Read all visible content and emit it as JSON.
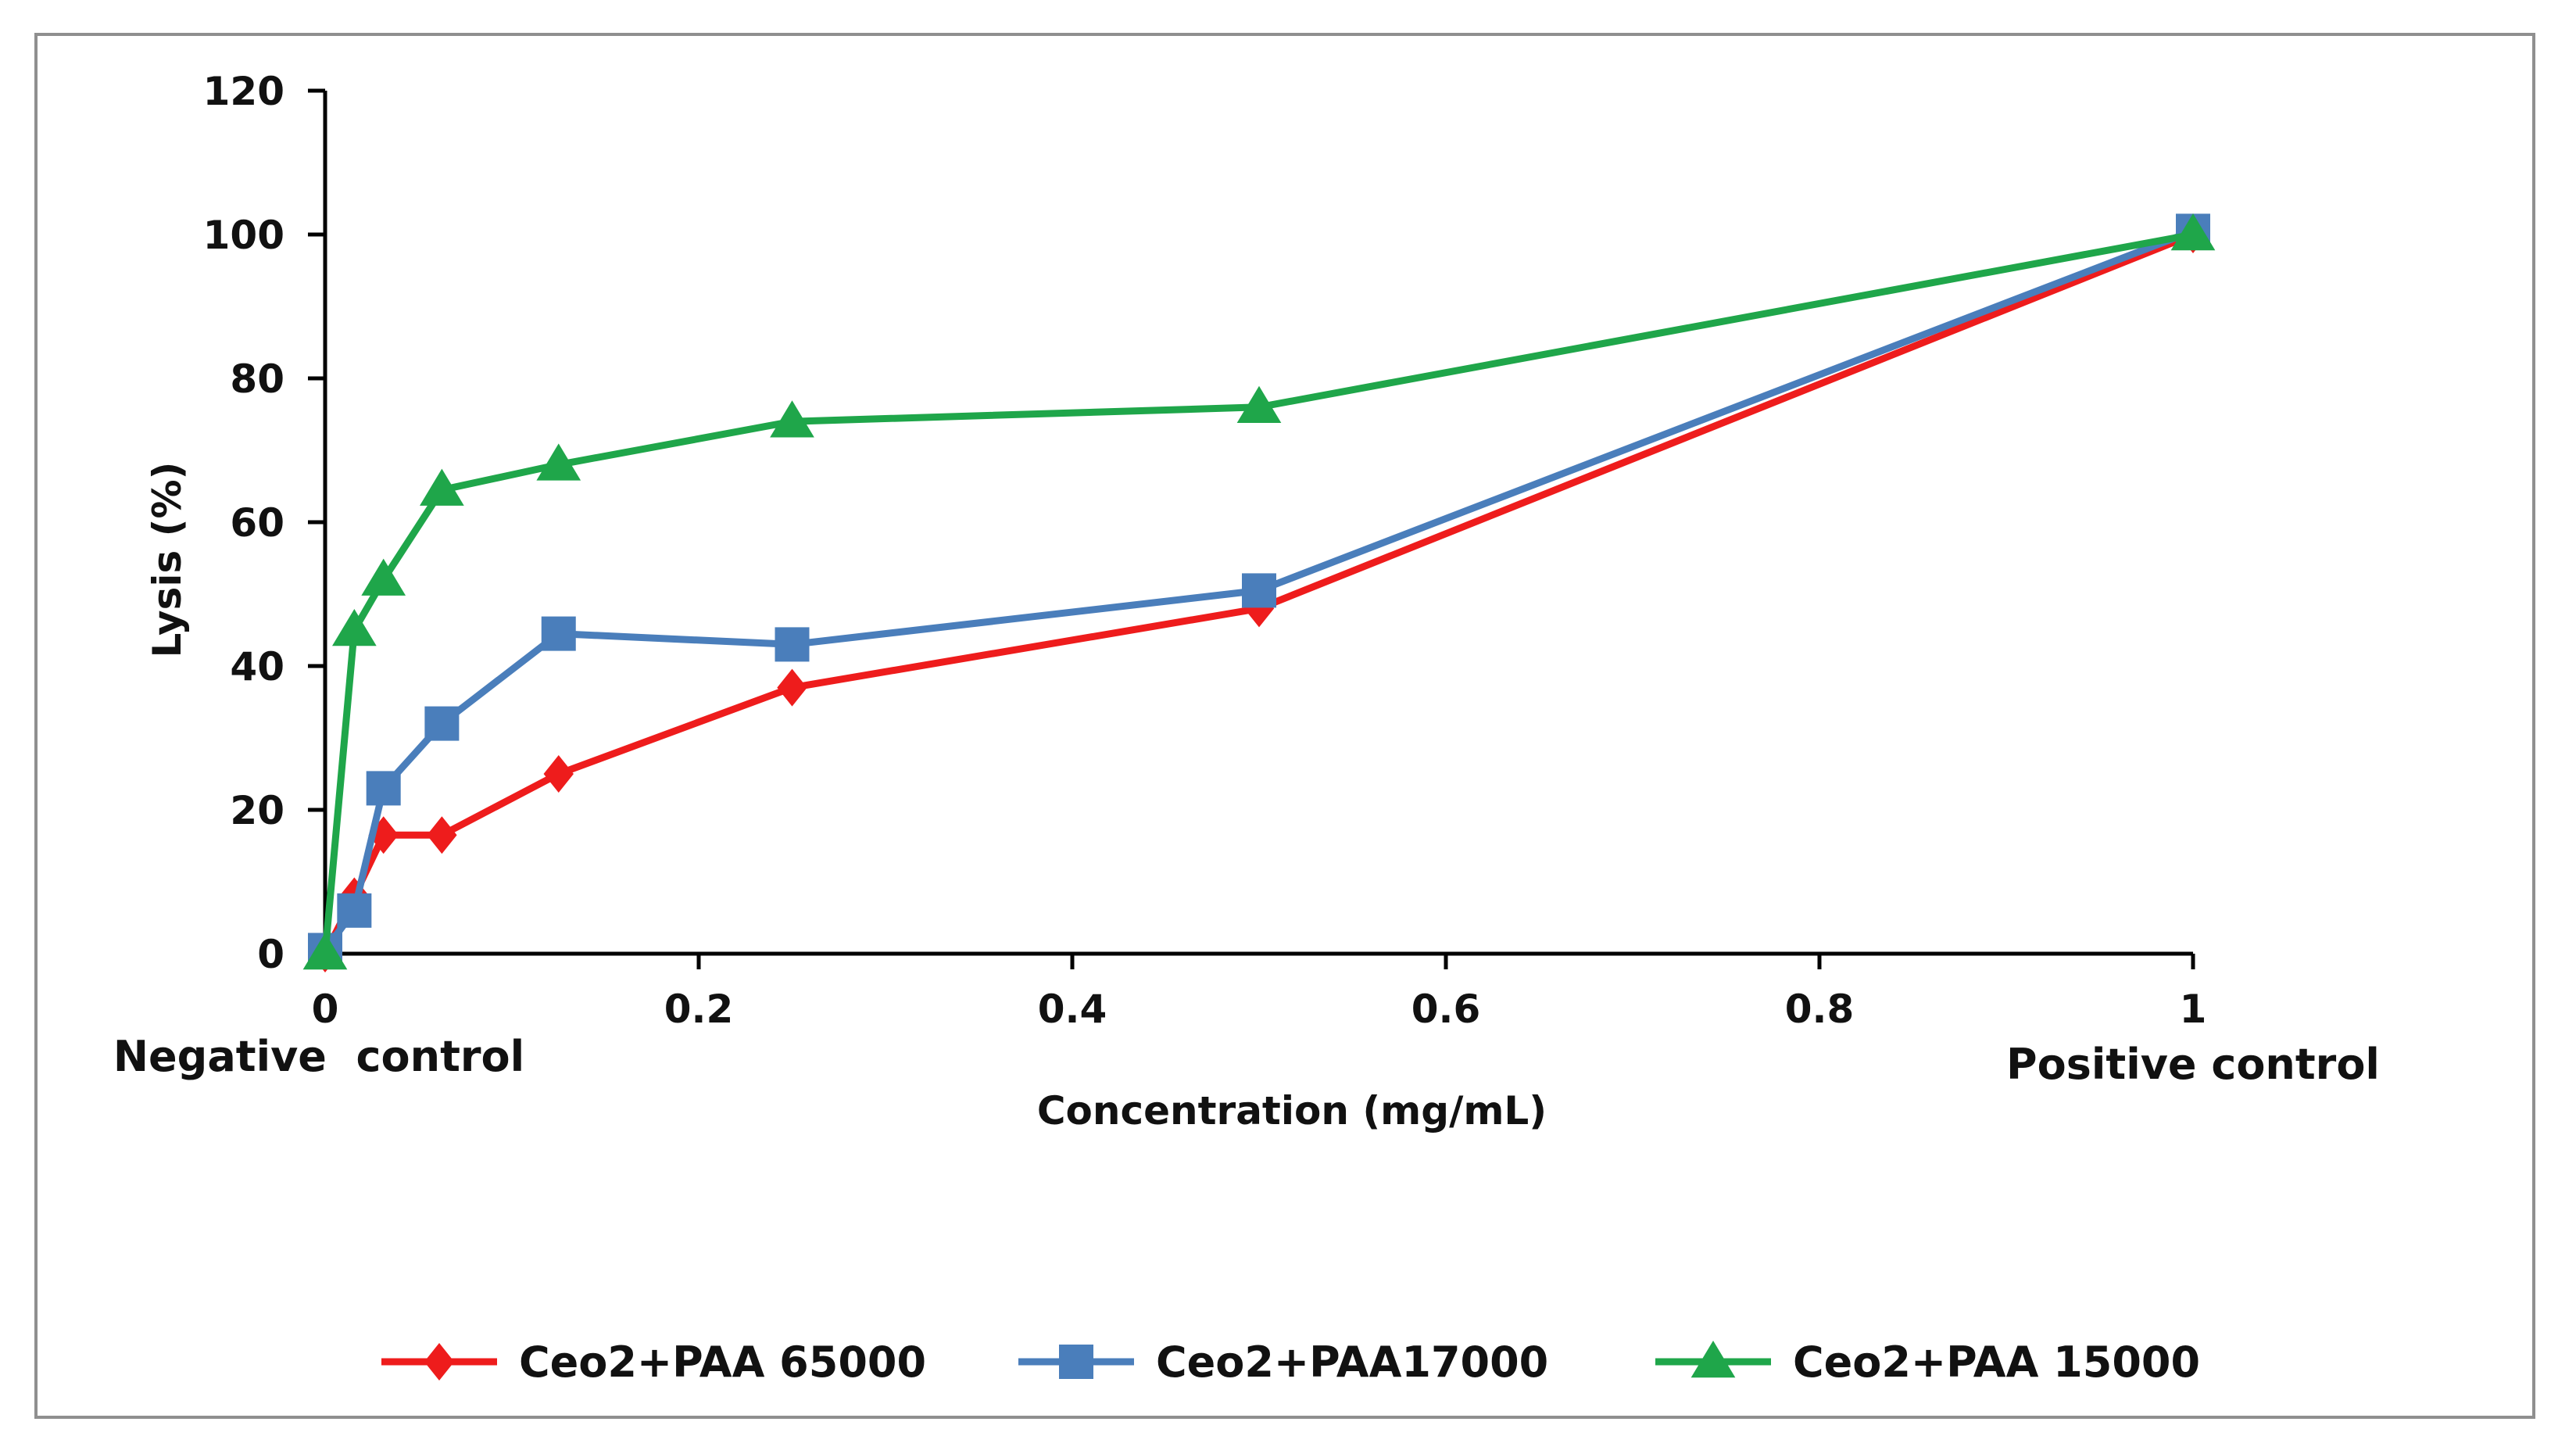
{
  "chart_data": {
    "type": "line",
    "title": "",
    "xlabel": "Concentration (mg/mL)",
    "ylabel": "Lysis (%)",
    "xlim": [
      0,
      1
    ],
    "ylim": [
      0,
      120
    ],
    "xticks": [
      0,
      0.2,
      0.4,
      0.6,
      0.8,
      1
    ],
    "xtick_labels": [
      "0",
      "0.2",
      "0.4",
      "0.6",
      "0.8",
      "1"
    ],
    "yticks": [
      0,
      20,
      40,
      60,
      80,
      100,
      120
    ],
    "ytick_labels": [
      "0",
      "20",
      "40",
      "60",
      "80",
      "100",
      "120"
    ],
    "grid": false,
    "legend_position": "bottom",
    "annotations": {
      "negative_control": "Negative  control",
      "positive_control": "Positive control"
    },
    "series": [
      {
        "name": "Ceo2+PAA 65000",
        "color": "#ee1c1c",
        "marker": "diamond",
        "x": [
          0,
          0.015625,
          0.03125,
          0.0625,
          0.125,
          0.25,
          0.5,
          1
        ],
        "y": [
          0,
          8,
          16.5,
          16.5,
          25,
          37,
          48,
          100
        ]
      },
      {
        "name": "Ceo2+PAA17000",
        "color": "#4a7ebb",
        "marker": "square",
        "x": [
          0,
          0.015625,
          0.03125,
          0.0625,
          0.125,
          0.25,
          0.5,
          1
        ],
        "y": [
          0.5,
          6,
          23,
          32,
          44.5,
          43,
          50.5,
          100.5
        ]
      },
      {
        "name": "Ceo2+PAA 15000",
        "color": "#1fa64a",
        "marker": "triangle",
        "x": [
          0,
          0.015625,
          0.03125,
          0.0625,
          0.125,
          0.25,
          0.5,
          1
        ],
        "y": [
          0,
          45,
          52,
          64.5,
          68,
          74,
          76,
          100
        ]
      }
    ]
  }
}
